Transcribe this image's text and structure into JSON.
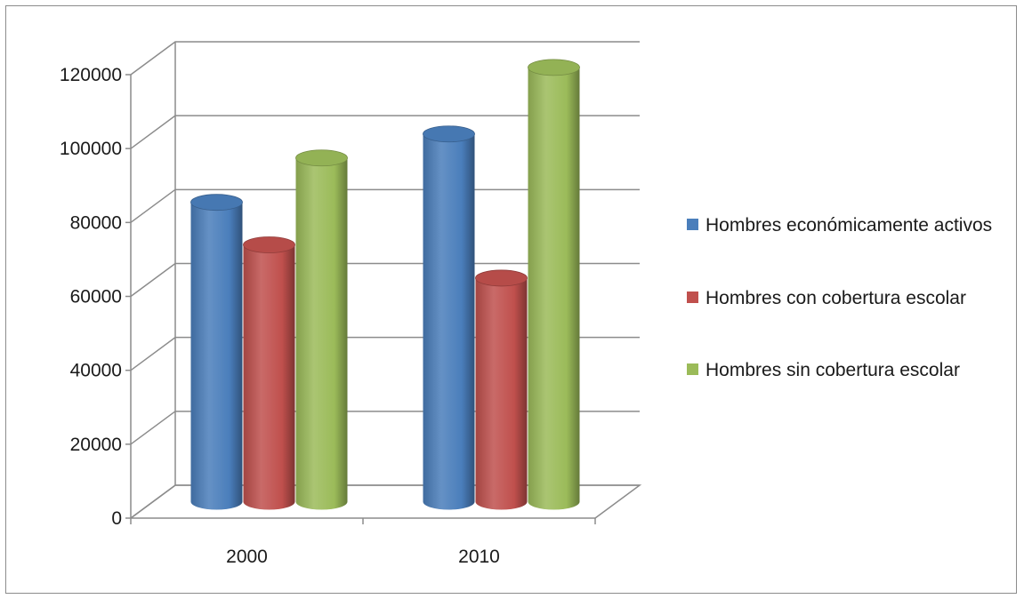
{
  "chart_data": {
    "type": "bar",
    "variant": "3d-cylinder",
    "title": "",
    "xlabel": "",
    "ylabel": "",
    "categories": [
      "2000",
      "2010"
    ],
    "ylim": [
      0,
      120000
    ],
    "yticks": [
      "0",
      "20000",
      "40000",
      "60000",
      "80000",
      "100000",
      "120000"
    ],
    "grid": true,
    "legend_position": "right",
    "series": [
      {
        "name": "Hombres económicamente activos",
        "values": [
          81000,
          99500
        ],
        "color": "#4a7ebb"
      },
      {
        "name": "Hombres con cobertura escolar",
        "values": [
          69500,
          60500
        ],
        "color": "#c0504d"
      },
      {
        "name": "Hombres sin cobertura escolar",
        "values": [
          93000,
          117500
        ],
        "color": "#9bbb59"
      }
    ]
  }
}
